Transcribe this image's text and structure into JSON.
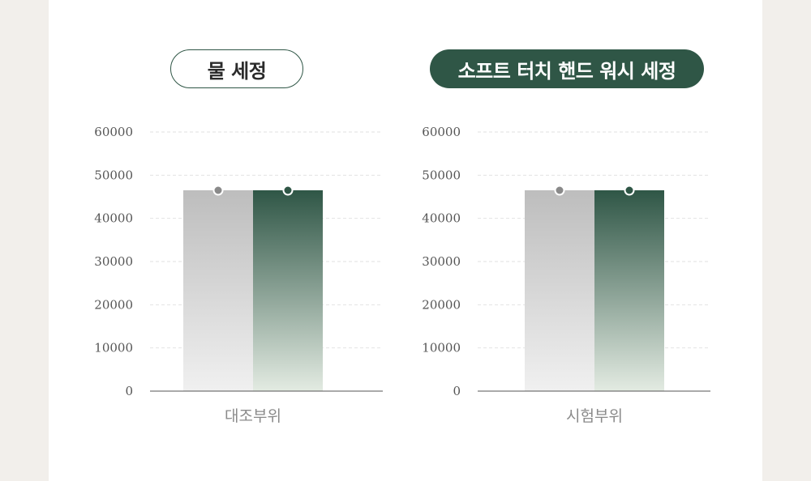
{
  "colors": {
    "background": "#f2efeb",
    "accent_green": "#2f5646",
    "gray_bar": "#c2c2c2",
    "axis": "#555555",
    "grid": "#e2e2e2"
  },
  "chart_data": [
    {
      "type": "bar",
      "title": "물 세정",
      "title_style": "outlined-pill",
      "categories": [
        "대조부위"
      ],
      "series": [
        {
          "color": "#c2c2c2",
          "values": [
            46500
          ]
        },
        {
          "color": "#2f5646",
          "values": [
            46500
          ]
        }
      ],
      "yticks": [
        "60000",
        "50000",
        "40000",
        "30000",
        "20000",
        "10000",
        "0"
      ],
      "ylim": [
        0,
        60000
      ],
      "grid": true,
      "xlabel": "",
      "ylabel": ""
    },
    {
      "type": "bar",
      "title": "소프트 터치 핸드 워시 세정",
      "title_style": "filled-pill",
      "categories": [
        "시험부위"
      ],
      "series": [
        {
          "color": "#c2c2c2",
          "values": [
            46500
          ]
        },
        {
          "color": "#2f5646",
          "values": [
            46500
          ]
        }
      ],
      "yticks": [
        "60000",
        "50000",
        "40000",
        "30000",
        "20000",
        "10000",
        "0"
      ],
      "ylim": [
        0,
        60000
      ],
      "grid": true,
      "xlabel": "",
      "ylabel": ""
    }
  ]
}
